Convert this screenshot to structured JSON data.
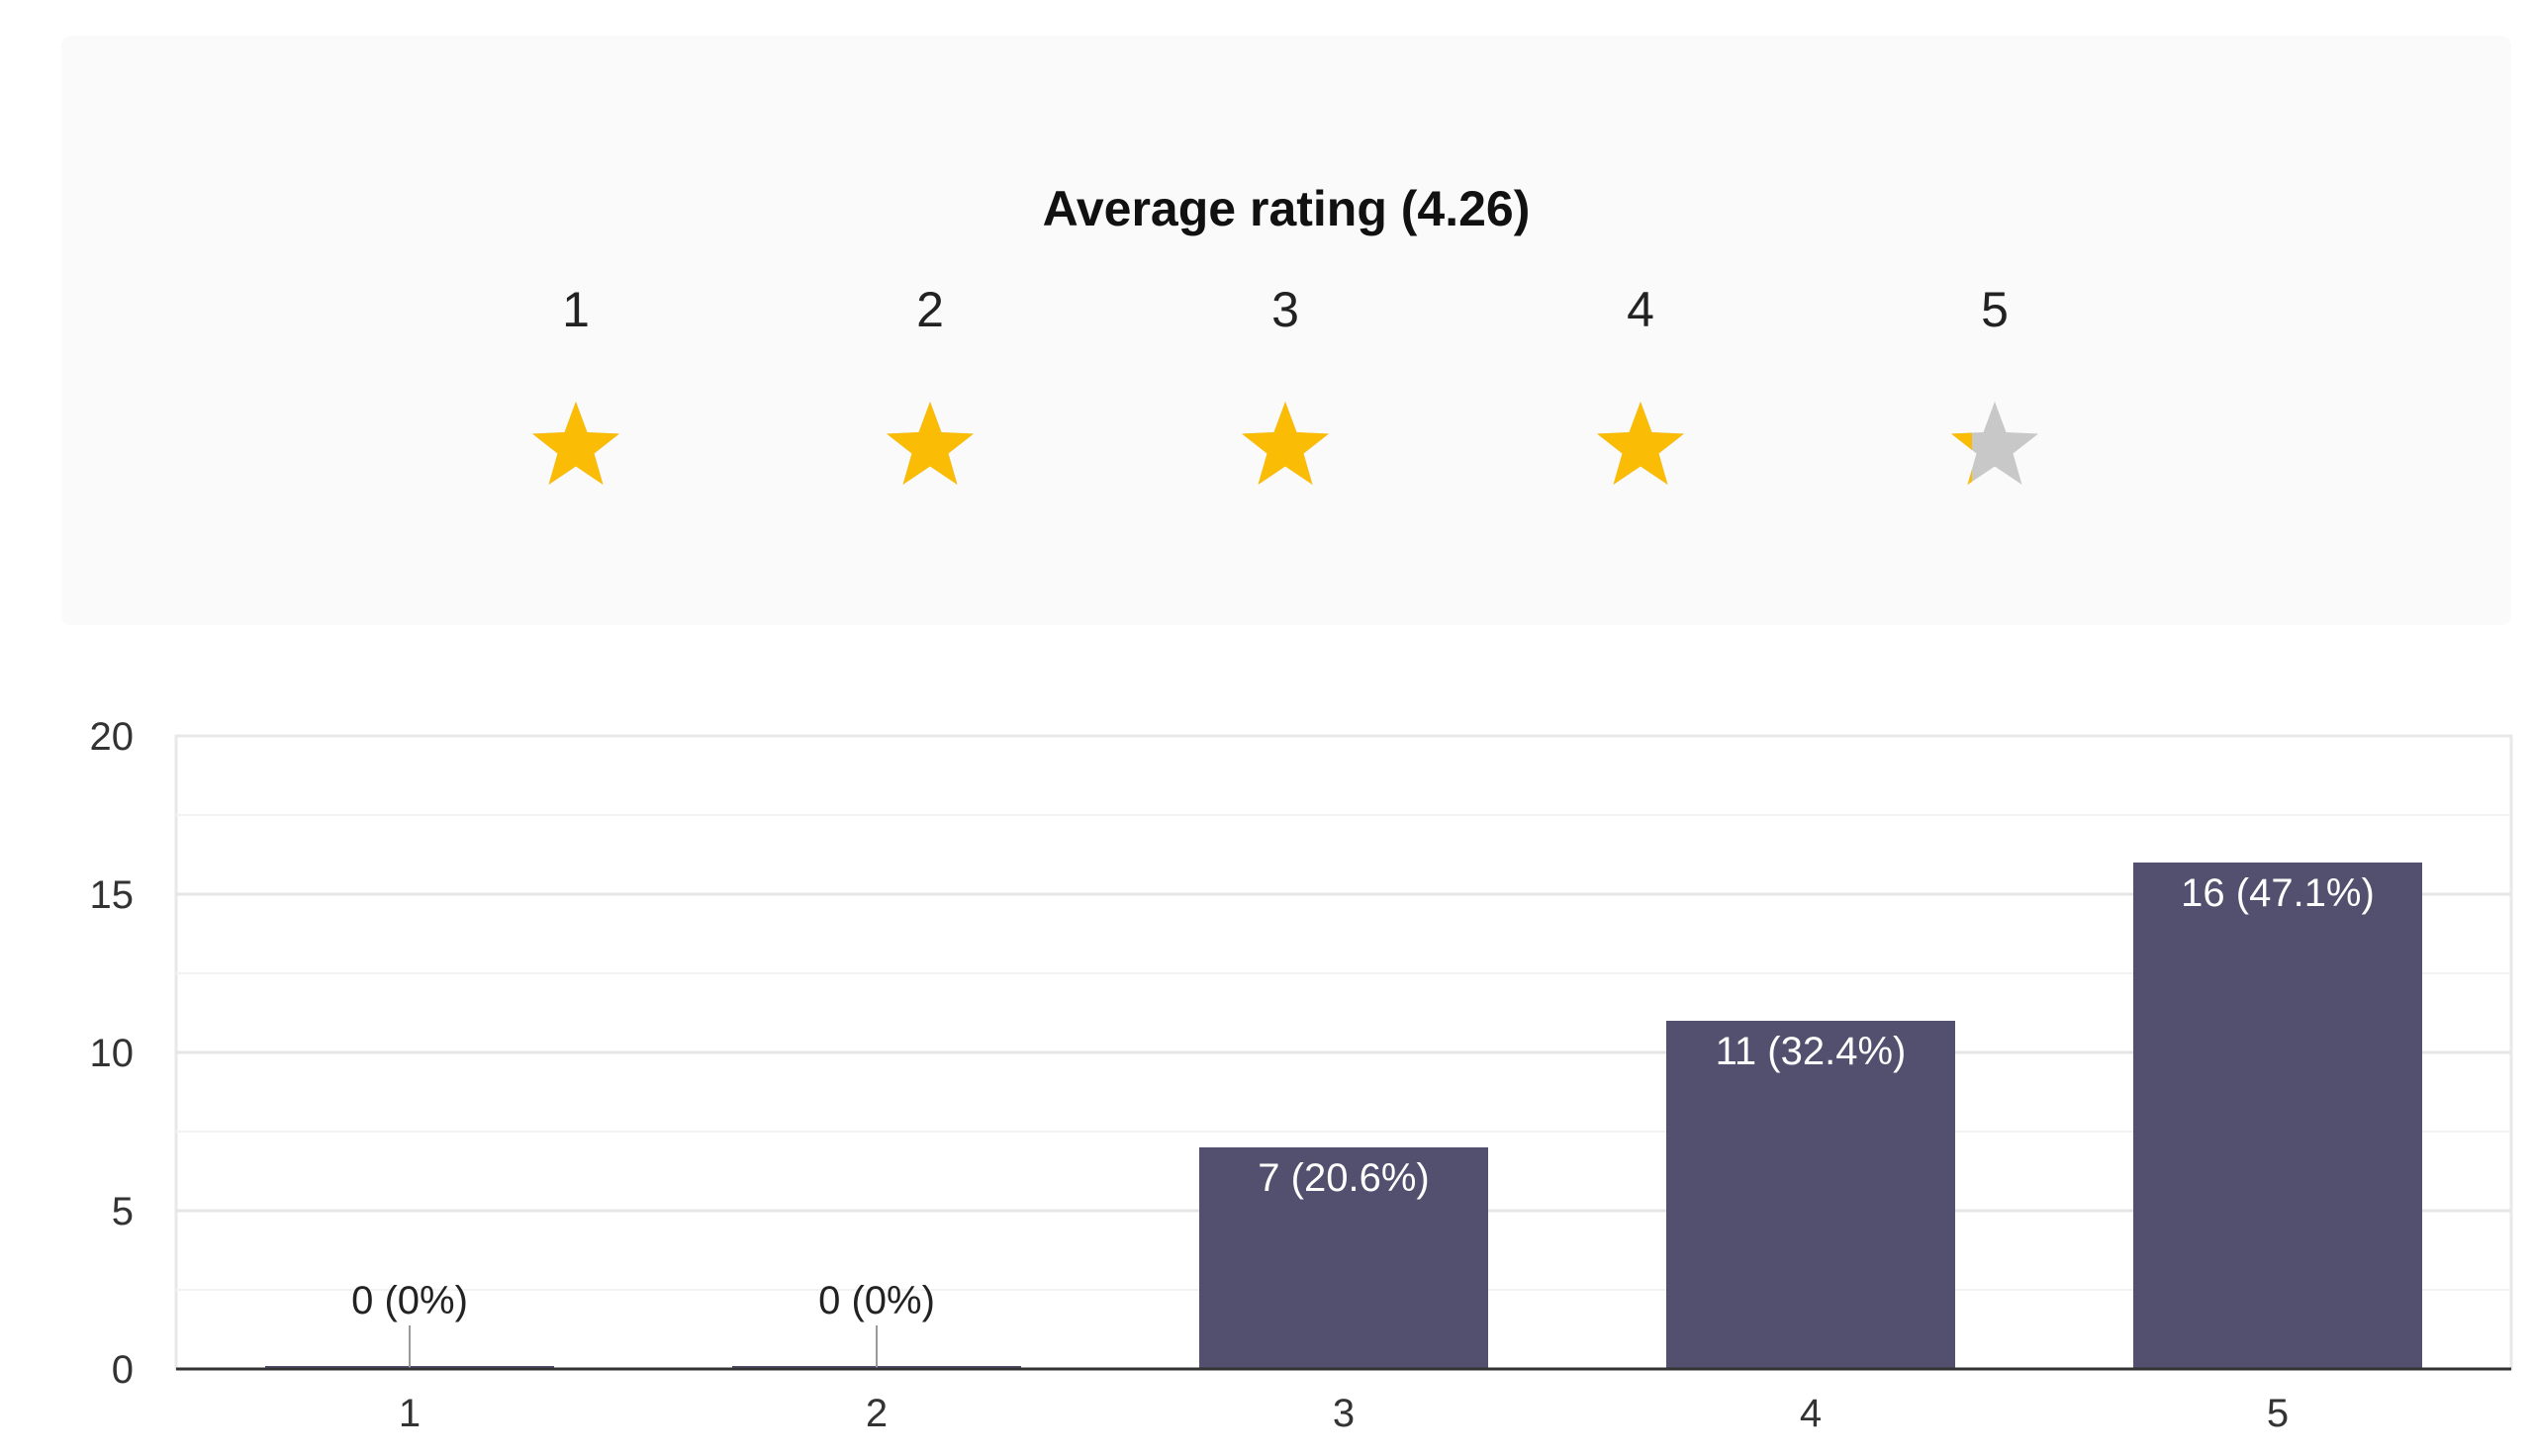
{
  "rating": {
    "title": "Average rating (4.26)",
    "average": 4.26,
    "max": 5,
    "star_labels": [
      "1",
      "2",
      "3",
      "4",
      "5"
    ],
    "star_fill_color": "#fbbc05",
    "star_empty_color": "#c8c8c8",
    "icon": "star-icon"
  },
  "chart_data": {
    "type": "bar",
    "categories": [
      "1",
      "2",
      "3",
      "4",
      "5"
    ],
    "values": [
      0,
      0,
      7,
      11,
      16
    ],
    "data_labels": [
      "0 (0%)",
      "0 (0%)",
      "7 (20.6%)",
      "11 (32.4%)",
      "16 (47.1%)"
    ],
    "y_ticks": [
      "0",
      "5",
      "10",
      "15",
      "20"
    ],
    "ylim": [
      0,
      20
    ],
    "xlabel": "",
    "ylabel": "",
    "grid": true,
    "bar_color": "#534f6e"
  }
}
